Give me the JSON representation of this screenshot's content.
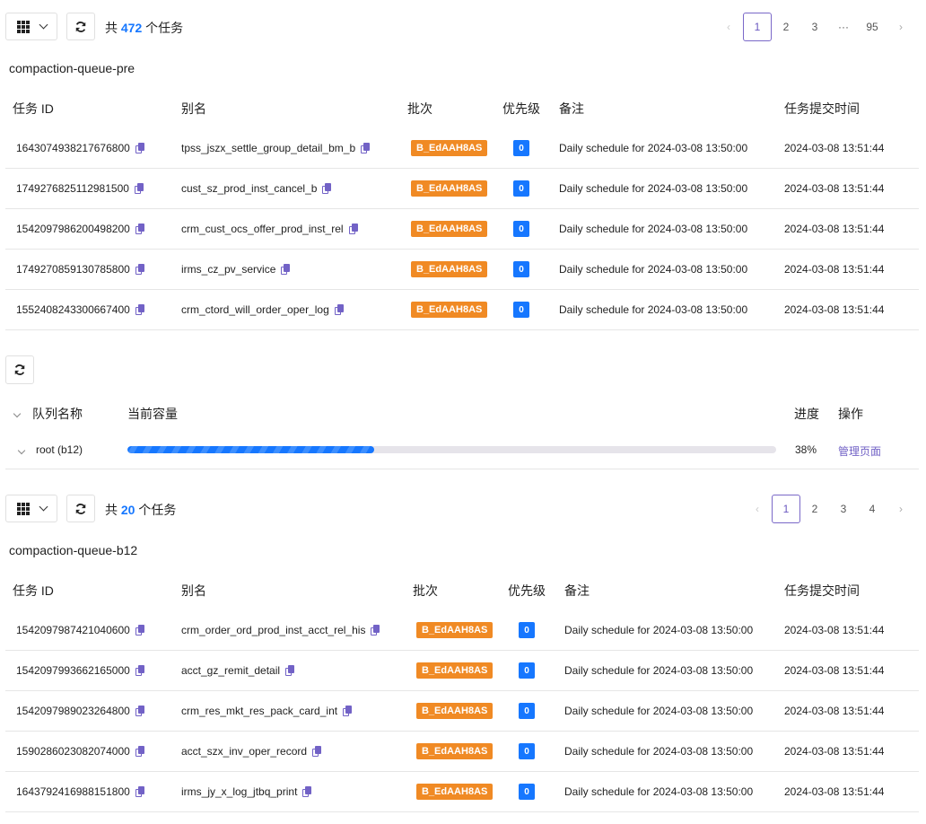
{
  "colors": {
    "accent": "#1677ff",
    "batch": "#f08a24",
    "link": "#7262c6"
  },
  "section1": {
    "total_prefix": "共",
    "total": "472",
    "total_suffix": "个任务",
    "queue_title": "compaction-queue-pre",
    "pagination": {
      "prev": "‹",
      "pages": [
        "1",
        "2",
        "3",
        "···",
        "95"
      ],
      "current": "1",
      "next": "›"
    },
    "columns": [
      "任务 ID",
      "别名",
      "批次",
      "优先级",
      "备注",
      "任务提交时间"
    ],
    "rows": [
      {
        "id": "1643074938217676800",
        "alias": "tpss_jszx_settle_group_detail_bm_b",
        "batch": "B_EdAAH8AS",
        "priority": "0",
        "note": "Daily schedule for 2024-03-08 13:50:00",
        "time": "2024-03-08 13:51:44"
      },
      {
        "id": "1749276825112981500",
        "alias": "cust_sz_prod_inst_cancel_b",
        "batch": "B_EdAAH8AS",
        "priority": "0",
        "note": "Daily schedule for 2024-03-08 13:50:00",
        "time": "2024-03-08 13:51:44"
      },
      {
        "id": "1542097986200498200",
        "alias": "crm_cust_ocs_offer_prod_inst_rel",
        "batch": "B_EdAAH8AS",
        "priority": "0",
        "note": "Daily schedule for 2024-03-08 13:50:00",
        "time": "2024-03-08 13:51:44"
      },
      {
        "id": "1749270859130785800",
        "alias": "irms_cz_pv_service",
        "batch": "B_EdAAH8AS",
        "priority": "0",
        "note": "Daily schedule for 2024-03-08 13:50:00",
        "time": "2024-03-08 13:51:44"
      },
      {
        "id": "1552408243300667400",
        "alias": "crm_ctord_will_order_oper_log",
        "batch": "B_EdAAH8AS",
        "priority": "0",
        "note": "Daily schedule for 2024-03-08 13:50:00",
        "time": "2024-03-08 13:51:44"
      }
    ]
  },
  "queue": {
    "columns": {
      "name": "队列名称",
      "capacity": "当前容量",
      "progress": "进度",
      "action": "操作"
    },
    "rows": [
      {
        "name": "root (b12)",
        "progress_pct": 38,
        "progress_label": "38%",
        "action": "管理页面"
      }
    ]
  },
  "section2": {
    "total_prefix": "共",
    "total": "20",
    "total_suffix": "个任务",
    "queue_title": "compaction-queue-b12",
    "pagination": {
      "prev": "‹",
      "pages": [
        "1",
        "2",
        "3",
        "4"
      ],
      "current": "1",
      "next": "›"
    },
    "columns": [
      "任务 ID",
      "别名",
      "批次",
      "优先级",
      "备注",
      "任务提交时间"
    ],
    "rows": [
      {
        "id": "1542097987421040600",
        "alias": "crm_order_ord_prod_inst_acct_rel_his",
        "batch": "B_EdAAH8AS",
        "priority": "0",
        "note": "Daily schedule for 2024-03-08 13:50:00",
        "time": "2024-03-08 13:51:44"
      },
      {
        "id": "1542097993662165000",
        "alias": "acct_gz_remit_detail",
        "batch": "B_EdAAH8AS",
        "priority": "0",
        "note": "Daily schedule for 2024-03-08 13:50:00",
        "time": "2024-03-08 13:51:44"
      },
      {
        "id": "1542097989023264800",
        "alias": "crm_res_mkt_res_pack_card_int",
        "batch": "B_EdAAH8AS",
        "priority": "0",
        "note": "Daily schedule for 2024-03-08 13:50:00",
        "time": "2024-03-08 13:51:44"
      },
      {
        "id": "1590286023082074000",
        "alias": "acct_szx_inv_oper_record",
        "batch": "B_EdAAH8AS",
        "priority": "0",
        "note": "Daily schedule for 2024-03-08 13:50:00",
        "time": "2024-03-08 13:51:44"
      },
      {
        "id": "1643792416988151800",
        "alias": "irms_jy_x_log_jtbq_print",
        "batch": "B_EdAAH8AS",
        "priority": "0",
        "note": "Daily schedule for 2024-03-08 13:50:00",
        "time": "2024-03-08 13:51:44"
      }
    ]
  }
}
